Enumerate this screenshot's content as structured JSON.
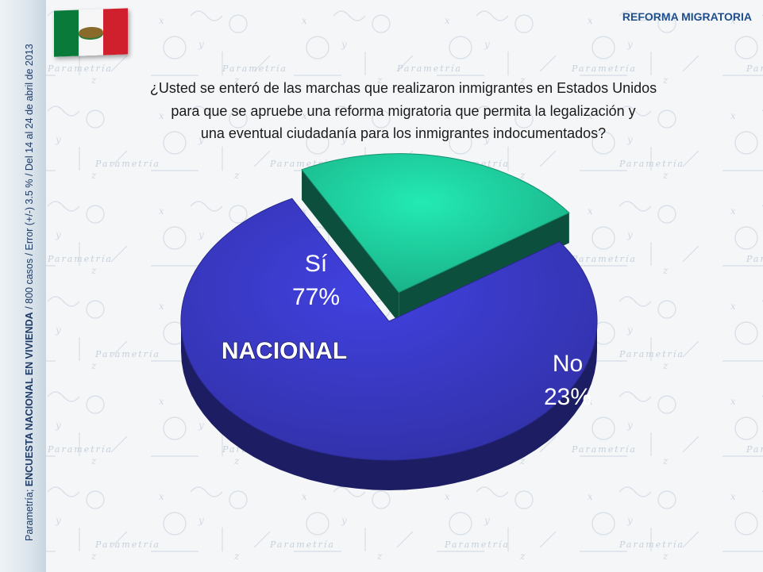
{
  "header": {
    "topic_label": "REFORMA MIGRATORIA"
  },
  "sidebar": {
    "source_prefix": "Parametría; ",
    "survey_name": "ENCUESTA NACIONAL EN VIVIENDA",
    "survey_details": " / 800 casos / Error (+/-) 3.5 % / Del 14 al 24  de abril de 2013"
  },
  "question": {
    "line1": "¿Usted se enteró de las marchas que realizaron inmigrantes en Estados Unidos",
    "line2": "para que se apruebe una reforma migratoria que permita la legalización y",
    "line3": "una eventual ciudadanía para los inmigrantes indocumentados?"
  },
  "chart_data": {
    "type": "pie",
    "subtitle": "NACIONAL",
    "slices": [
      {
        "label": "Sí",
        "value": 77,
        "display": "77%",
        "color": "#3a3ac8"
      },
      {
        "label": "No",
        "value": 23,
        "display": "23%",
        "color": "#1fd1a0"
      }
    ]
  },
  "watermark": {
    "brand": "Parametría"
  }
}
